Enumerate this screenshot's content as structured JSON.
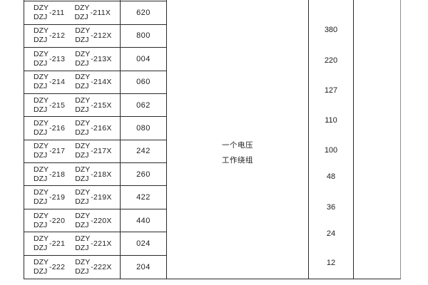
{
  "table": {
    "series_top": "DZY",
    "series_bottom": "DZJ",
    "rows": [
      {
        "suffix": "-211",
        "suffix_x": "-211X",
        "value": "620"
      },
      {
        "suffix": "-212",
        "suffix_x": "-212X",
        "value": "800"
      },
      {
        "suffix": "-213",
        "suffix_x": "-213X",
        "value": "004"
      },
      {
        "suffix": "-214",
        "suffix_x": "-214X",
        "value": "060"
      },
      {
        "suffix": "-215",
        "suffix_x": "-215X",
        "value": "062"
      },
      {
        "suffix": "-216",
        "suffix_x": "-216X",
        "value": "080"
      },
      {
        "suffix": "-217",
        "suffix_x": "-217X",
        "value": "242"
      },
      {
        "suffix": "-218",
        "suffix_x": "-218X",
        "value": "260"
      },
      {
        "suffix": "-219",
        "suffix_x": "-219X",
        "value": "422"
      },
      {
        "suffix": "-220",
        "suffix_x": "-220X",
        "value": "440"
      },
      {
        "suffix": "-221",
        "suffix_x": "-221X",
        "value": "024"
      },
      {
        "suffix": "-222",
        "suffix_x": "-222X",
        "value": "204"
      }
    ],
    "middle_note_line1": "一个电压",
    "middle_note_line2": "工作绕组",
    "voltages": [
      "380",
      "220",
      "127",
      "110",
      "100",
      "48",
      "36",
      "24",
      "12"
    ],
    "colors": {
      "line": "#2b2b2b",
      "line_light": "#8e8e8e",
      "text": "#1c1c1c",
      "background": "#ffffff"
    }
  }
}
